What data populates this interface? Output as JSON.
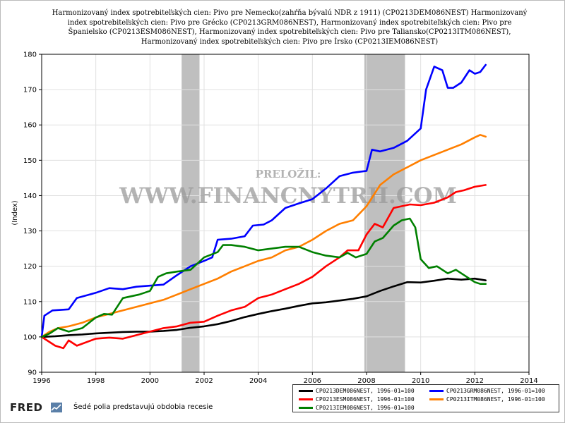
{
  "chart_data": {
    "type": "line",
    "title": "Harmonizovaný index spotrebiteľských cien: Pivo pre Nemecko(zahŕňa bývalú NDR z 1911) (CP0213DEM086NEST) Harmonizovaný index spotrebiteľských cien: Pivo pre Grécko (CP0213GRM086NEST), Harmonizovaný index spotrebiteľských cien: Pivo pre Španielsko (CP0213ESM086NEST), Harmonizovaný index spotrebiteľských cien: Pivo pre Taliansko(CP0213ITM086NEST), Harmonizovaný index spotrebiteľských cien: Pivo pre Írsko (CP0213IEM086NEST)",
    "ylabel": "(Index)",
    "xlabel": "",
    "xlim": [
      1996,
      2014
    ],
    "ylim": [
      90,
      180
    ],
    "x_ticks": [
      "1996",
      "1998",
      "2000",
      "2002",
      "2004",
      "2006",
      "2008",
      "2010",
      "2012",
      "2014"
    ],
    "y_ticks": [
      "90",
      "100",
      "110",
      "120",
      "130",
      "140",
      "150",
      "160",
      "170",
      "180"
    ],
    "grid": true,
    "legend_position": "bottom-right",
    "recessions": [
      [
        2001.17,
        2001.83
      ],
      [
        2007.92,
        2009.42
      ]
    ],
    "series": [
      {
        "name": "CP0213DEM086NEST, 1996-01=100",
        "color": "#000000",
        "points": [
          [
            1996.0,
            100
          ],
          [
            1996.5,
            100.2
          ],
          [
            1997.0,
            100.5
          ],
          [
            1997.5,
            100.7
          ],
          [
            1998.0,
            101
          ],
          [
            1998.5,
            101.2
          ],
          [
            1999.0,
            101.4
          ],
          [
            1999.5,
            101.5
          ],
          [
            2000.0,
            101.5
          ],
          [
            2000.5,
            101.7
          ],
          [
            2001.0,
            102
          ],
          [
            2001.5,
            102.6
          ],
          [
            2002.0,
            103
          ],
          [
            2002.5,
            103.6
          ],
          [
            2003.0,
            104.5
          ],
          [
            2003.5,
            105.6
          ],
          [
            2004.0,
            106.5
          ],
          [
            2004.5,
            107.3
          ],
          [
            2005.0,
            108
          ],
          [
            2005.5,
            108.8
          ],
          [
            2006.0,
            109.5
          ],
          [
            2006.5,
            109.8
          ],
          [
            2007.0,
            110.3
          ],
          [
            2007.5,
            110.8
          ],
          [
            2008.0,
            111.5
          ],
          [
            2008.5,
            113
          ],
          [
            2009.0,
            114.3
          ],
          [
            2009.5,
            115.5
          ],
          [
            2010.0,
            115.4
          ],
          [
            2010.5,
            115.9
          ],
          [
            2011.0,
            116.5
          ],
          [
            2011.5,
            116.2
          ],
          [
            2012.0,
            116.5
          ],
          [
            2012.4,
            116.0
          ]
        ]
      },
      {
        "name": "CP0213GRM086NEST, 1996-01=100",
        "color": "#0000ff",
        "points": [
          [
            1996.0,
            100
          ],
          [
            1996.1,
            106
          ],
          [
            1996.4,
            107.5
          ],
          [
            1997.0,
            107.8
          ],
          [
            1997.3,
            111
          ],
          [
            1998.0,
            112.5
          ],
          [
            1998.5,
            113.8
          ],
          [
            1999.0,
            113.5
          ],
          [
            1999.5,
            114.2
          ],
          [
            2000.0,
            114.5
          ],
          [
            2000.5,
            114.8
          ],
          [
            2001.0,
            117.5
          ],
          [
            2001.5,
            120
          ],
          [
            2002.0,
            121.5
          ],
          [
            2002.3,
            122.5
          ],
          [
            2002.5,
            127.5
          ],
          [
            2003.0,
            127.8
          ],
          [
            2003.5,
            128.5
          ],
          [
            2003.8,
            131.5
          ],
          [
            2004.2,
            131.8
          ],
          [
            2004.5,
            133
          ],
          [
            2005.0,
            136.5
          ],
          [
            2005.5,
            137.8
          ],
          [
            2006.0,
            139
          ],
          [
            2006.5,
            142
          ],
          [
            2007.0,
            145.5
          ],
          [
            2007.5,
            146.5
          ],
          [
            2008.0,
            147
          ],
          [
            2008.2,
            153
          ],
          [
            2008.5,
            152.5
          ],
          [
            2009.0,
            153.5
          ],
          [
            2009.5,
            155.5
          ],
          [
            2010.0,
            159
          ],
          [
            2010.2,
            170
          ],
          [
            2010.5,
            176.5
          ],
          [
            2010.8,
            175.5
          ],
          [
            2011.0,
            170.5
          ],
          [
            2011.2,
            170.5
          ],
          [
            2011.5,
            172
          ],
          [
            2011.8,
            175.5
          ],
          [
            2012.0,
            174.5
          ],
          [
            2012.2,
            175
          ],
          [
            2012.4,
            177
          ]
        ]
      },
      {
        "name": "CP0213ESM086NEST, 1996-01=100",
        "color": "#ff0000",
        "points": [
          [
            1996.0,
            100
          ],
          [
            1996.5,
            97.5
          ],
          [
            1996.8,
            96.8
          ],
          [
            1997.0,
            99
          ],
          [
            1997.3,
            97.5
          ],
          [
            1998.0,
            99.5
          ],
          [
            1998.5,
            99.8
          ],
          [
            1999.0,
            99.5
          ],
          [
            1999.5,
            100.5
          ],
          [
            2000.0,
            101.5
          ],
          [
            2000.5,
            102.5
          ],
          [
            2001.0,
            103
          ],
          [
            2001.5,
            104
          ],
          [
            2002.0,
            104.3
          ],
          [
            2002.5,
            106
          ],
          [
            2003.0,
            107.5
          ],
          [
            2003.5,
            108.5
          ],
          [
            2004.0,
            111
          ],
          [
            2004.5,
            112
          ],
          [
            2005.0,
            113.5
          ],
          [
            2005.5,
            115
          ],
          [
            2006.0,
            117
          ],
          [
            2006.5,
            120
          ],
          [
            2007.0,
            122.5
          ],
          [
            2007.3,
            124.5
          ],
          [
            2007.7,
            124.5
          ],
          [
            2008.0,
            129
          ],
          [
            2008.3,
            132
          ],
          [
            2008.6,
            131
          ],
          [
            2009.0,
            136.5
          ],
          [
            2009.3,
            137
          ],
          [
            2009.6,
            137.5
          ],
          [
            2010.0,
            137.3
          ],
          [
            2010.5,
            138
          ],
          [
            2011.0,
            139.5
          ],
          [
            2011.3,
            141
          ],
          [
            2011.6,
            141.5
          ],
          [
            2012.0,
            142.5
          ],
          [
            2012.4,
            143
          ]
        ]
      },
      {
        "name": "CP0213ITM086NEST, 1996-01=100",
        "color": "#ff7f00",
        "points": [
          [
            1996.0,
            100
          ],
          [
            1996.3,
            101.5
          ],
          [
            1996.6,
            102.5
          ],
          [
            1997.0,
            103
          ],
          [
            1997.5,
            104
          ],
          [
            1998.0,
            105.5
          ],
          [
            1998.5,
            106.5
          ],
          [
            1999.0,
            107.5
          ],
          [
            1999.5,
            108.5
          ],
          [
            2000.0,
            109.5
          ],
          [
            2000.5,
            110.5
          ],
          [
            2001.0,
            112
          ],
          [
            2001.5,
            113.5
          ],
          [
            2002.0,
            115
          ],
          [
            2002.5,
            116.5
          ],
          [
            2003.0,
            118.5
          ],
          [
            2003.5,
            120
          ],
          [
            2004.0,
            121.5
          ],
          [
            2004.5,
            122.5
          ],
          [
            2005.0,
            124.5
          ],
          [
            2005.5,
            125.5
          ],
          [
            2006.0,
            127.5
          ],
          [
            2006.5,
            130
          ],
          [
            2007.0,
            132
          ],
          [
            2007.5,
            133
          ],
          [
            2008.0,
            137
          ],
          [
            2008.5,
            143
          ],
          [
            2009.0,
            146
          ],
          [
            2009.5,
            148
          ],
          [
            2010.0,
            150
          ],
          [
            2010.5,
            151.5
          ],
          [
            2011.0,
            153
          ],
          [
            2011.5,
            154.5
          ],
          [
            2012.0,
            156.5
          ],
          [
            2012.2,
            157.2
          ],
          [
            2012.4,
            156.7
          ]
        ]
      },
      {
        "name": "CP0213IEM086NEST, 1996-01=100",
        "color": "#008000",
        "points": [
          [
            1996.0,
            100
          ],
          [
            1996.3,
            101
          ],
          [
            1996.6,
            102.5
          ],
          [
            1997.0,
            101.5
          ],
          [
            1997.5,
            102.5
          ],
          [
            1998.0,
            105.5
          ],
          [
            1998.3,
            106.5
          ],
          [
            1998.6,
            106.3
          ],
          [
            1999.0,
            111
          ],
          [
            1999.3,
            111.5
          ],
          [
            1999.6,
            112
          ],
          [
            2000.0,
            113
          ],
          [
            2000.3,
            117
          ],
          [
            2000.6,
            118
          ],
          [
            2001.0,
            118.5
          ],
          [
            2001.5,
            119
          ],
          [
            2002.0,
            122.5
          ],
          [
            2002.5,
            124
          ],
          [
            2002.7,
            126
          ],
          [
            2003.0,
            126
          ],
          [
            2003.5,
            125.5
          ],
          [
            2004.0,
            124.5
          ],
          [
            2004.5,
            125
          ],
          [
            2005.0,
            125.5
          ],
          [
            2005.5,
            125.5
          ],
          [
            2006.0,
            124
          ],
          [
            2006.5,
            123
          ],
          [
            2007.0,
            122.5
          ],
          [
            2007.3,
            123.8
          ],
          [
            2007.6,
            122.5
          ],
          [
            2008.0,
            123.5
          ],
          [
            2008.3,
            127
          ],
          [
            2008.6,
            128
          ],
          [
            2009.0,
            131.5
          ],
          [
            2009.3,
            133
          ],
          [
            2009.6,
            133.5
          ],
          [
            2009.8,
            131
          ],
          [
            2010.0,
            122
          ],
          [
            2010.3,
            119.5
          ],
          [
            2010.6,
            120
          ],
          [
            2011.0,
            118
          ],
          [
            2011.3,
            119
          ],
          [
            2011.6,
            117.5
          ],
          [
            2012.0,
            115.5
          ],
          [
            2012.2,
            115
          ],
          [
            2012.4,
            115
          ]
        ]
      }
    ]
  },
  "watermark": {
    "line1": "PRELOŽIL:",
    "line2": "WWW.FINANCNYTRH.COM"
  },
  "footer": {
    "brand": "FRED",
    "recession_note": "Šedé polia predstavujú obdobia recesie"
  },
  "colors": {
    "recession_shade": "#bfbfbf",
    "grid": "#e0e0e0"
  }
}
